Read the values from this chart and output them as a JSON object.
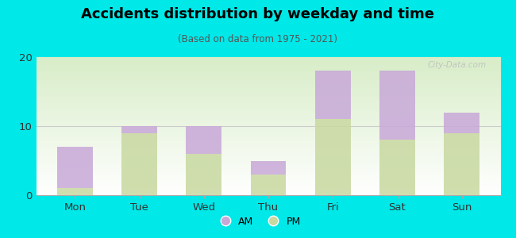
{
  "categories": [
    "Mon",
    "Tue",
    "Wed",
    "Thu",
    "Fri",
    "Sat",
    "Sun"
  ],
  "pm_values": [
    1,
    9,
    6,
    3,
    11,
    8,
    9
  ],
  "am_values": [
    6,
    1,
    4,
    2,
    7,
    10,
    3
  ],
  "am_color": "#c8a8d8",
  "pm_color": "#c8d8a0",
  "title": "Accidents distribution by weekday and time",
  "subtitle": "(Based on data from 1975 - 2021)",
  "ylim": [
    0,
    20
  ],
  "yticks": [
    0,
    10,
    20
  ],
  "background_color": "#00e8e8",
  "plot_bg_top": "#f0f8ee",
  "plot_bg_bottom": "#ffffff",
  "bar_width": 0.55,
  "watermark": "City-Data.com"
}
